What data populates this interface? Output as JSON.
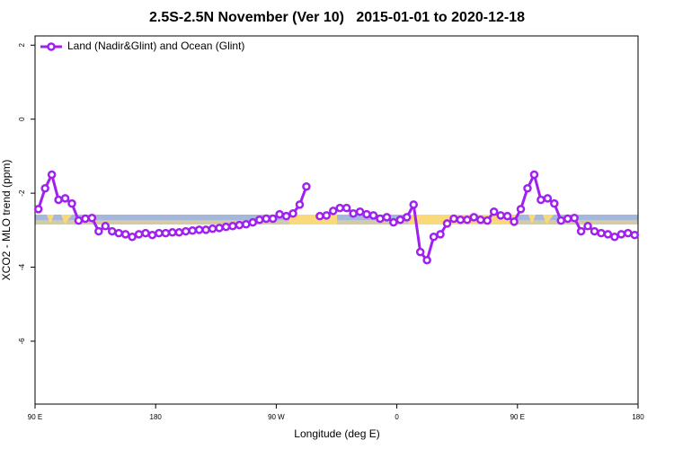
{
  "chart_data": {
    "type": "line",
    "title": "2.5S-2.5N November (Ver 10)   2015-01-01 to 2020-12-18",
    "xlabel": "Longitude (deg E)",
    "ylabel": "XCO2 - MLO trend (ppm)",
    "xlim": [
      90,
      540
    ],
    "xticks": [
      {
        "value": 90,
        "label": "90 E"
      },
      {
        "value": 180,
        "label": "180"
      },
      {
        "value": 270,
        "label": "90 W"
      },
      {
        "value": 360,
        "label": "0"
      },
      {
        "value": 450,
        "label": "90 E"
      },
      {
        "value": 540,
        "label": "180"
      }
    ],
    "ylim": [
      -7.7,
      2.25
    ],
    "yticks": [
      2,
      0,
      -2,
      -4,
      -6
    ],
    "legend": "topleft",
    "x": [
      92.5,
      97.5,
      102.5,
      107.5,
      112.5,
      117.5,
      122.5,
      127.5,
      132.5,
      137.5,
      142.5,
      147.5,
      152.5,
      157.5,
      162.5,
      167.5,
      172.5,
      177.5,
      182.5,
      187.5,
      192.5,
      197.5,
      202.5,
      207.5,
      212.5,
      217.5,
      222.5,
      227.5,
      232.5,
      237.5,
      242.5,
      247.5,
      252.5,
      257.5,
      262.5,
      267.5,
      272.5,
      277.5,
      282.5,
      287.5,
      292.5,
      297.5,
      302.5,
      307.5,
      312.5,
      317.5,
      322.5,
      327.5,
      332.5,
      337.5,
      342.5,
      347.5,
      352.5,
      357.5,
      362.5,
      367.5,
      372.5,
      377.5,
      382.5,
      387.5,
      392.5,
      397.5,
      402.5,
      407.5,
      412.5,
      417.5,
      422.5,
      427.5,
      432.5,
      437.5,
      442.5,
      447.5,
      452.5,
      457.5,
      462.5,
      467.5,
      472.5,
      477.5,
      482.5,
      487.5,
      492.5,
      497.5,
      502.5,
      507.5,
      512.5,
      517.5,
      522.5,
      527.5,
      532.5,
      537.5
    ],
    "series": [
      {
        "name": "Land (Nadir&Glint) and Ocean (Glint)",
        "color": "#a020f0",
        "values": [
          -2.43,
          -1.87,
          -1.5,
          -2.18,
          -2.14,
          -2.28,
          -2.74,
          -2.69,
          -2.67,
          -3.03,
          -2.89,
          -3.03,
          -3.08,
          -3.11,
          -3.18,
          -3.11,
          -3.08,
          -3.13,
          -3.08,
          -3.08,
          -3.06,
          -3.06,
          -3.03,
          -3.01,
          -2.99,
          -2.99,
          -2.96,
          -2.94,
          -2.91,
          -2.89,
          -2.86,
          -2.84,
          -2.79,
          -2.72,
          -2.69,
          -2.69,
          -2.57,
          -2.62,
          -2.55,
          -2.31,
          -1.82,
          null,
          -2.62,
          -2.6,
          -2.48,
          -2.4,
          -2.4,
          -2.55,
          -2.5,
          -2.57,
          -2.6,
          -2.69,
          -2.65,
          -2.79,
          -2.72,
          -2.65,
          -2.31,
          -3.59,
          -3.81,
          -3.18,
          -3.11,
          -2.82,
          -2.69,
          -2.72,
          -2.72,
          -2.65,
          -2.72,
          -2.74,
          -2.5,
          -2.6,
          -2.62,
          -2.77,
          -2.43,
          -1.87,
          -1.5,
          -2.18,
          -2.14,
          -2.28,
          -2.74,
          -2.69,
          -2.67,
          -3.03,
          -2.89,
          -3.03,
          -3.08,
          -3.11,
          -3.18,
          -3.11,
          -3.08,
          -3.13
        ]
      }
    ]
  }
}
